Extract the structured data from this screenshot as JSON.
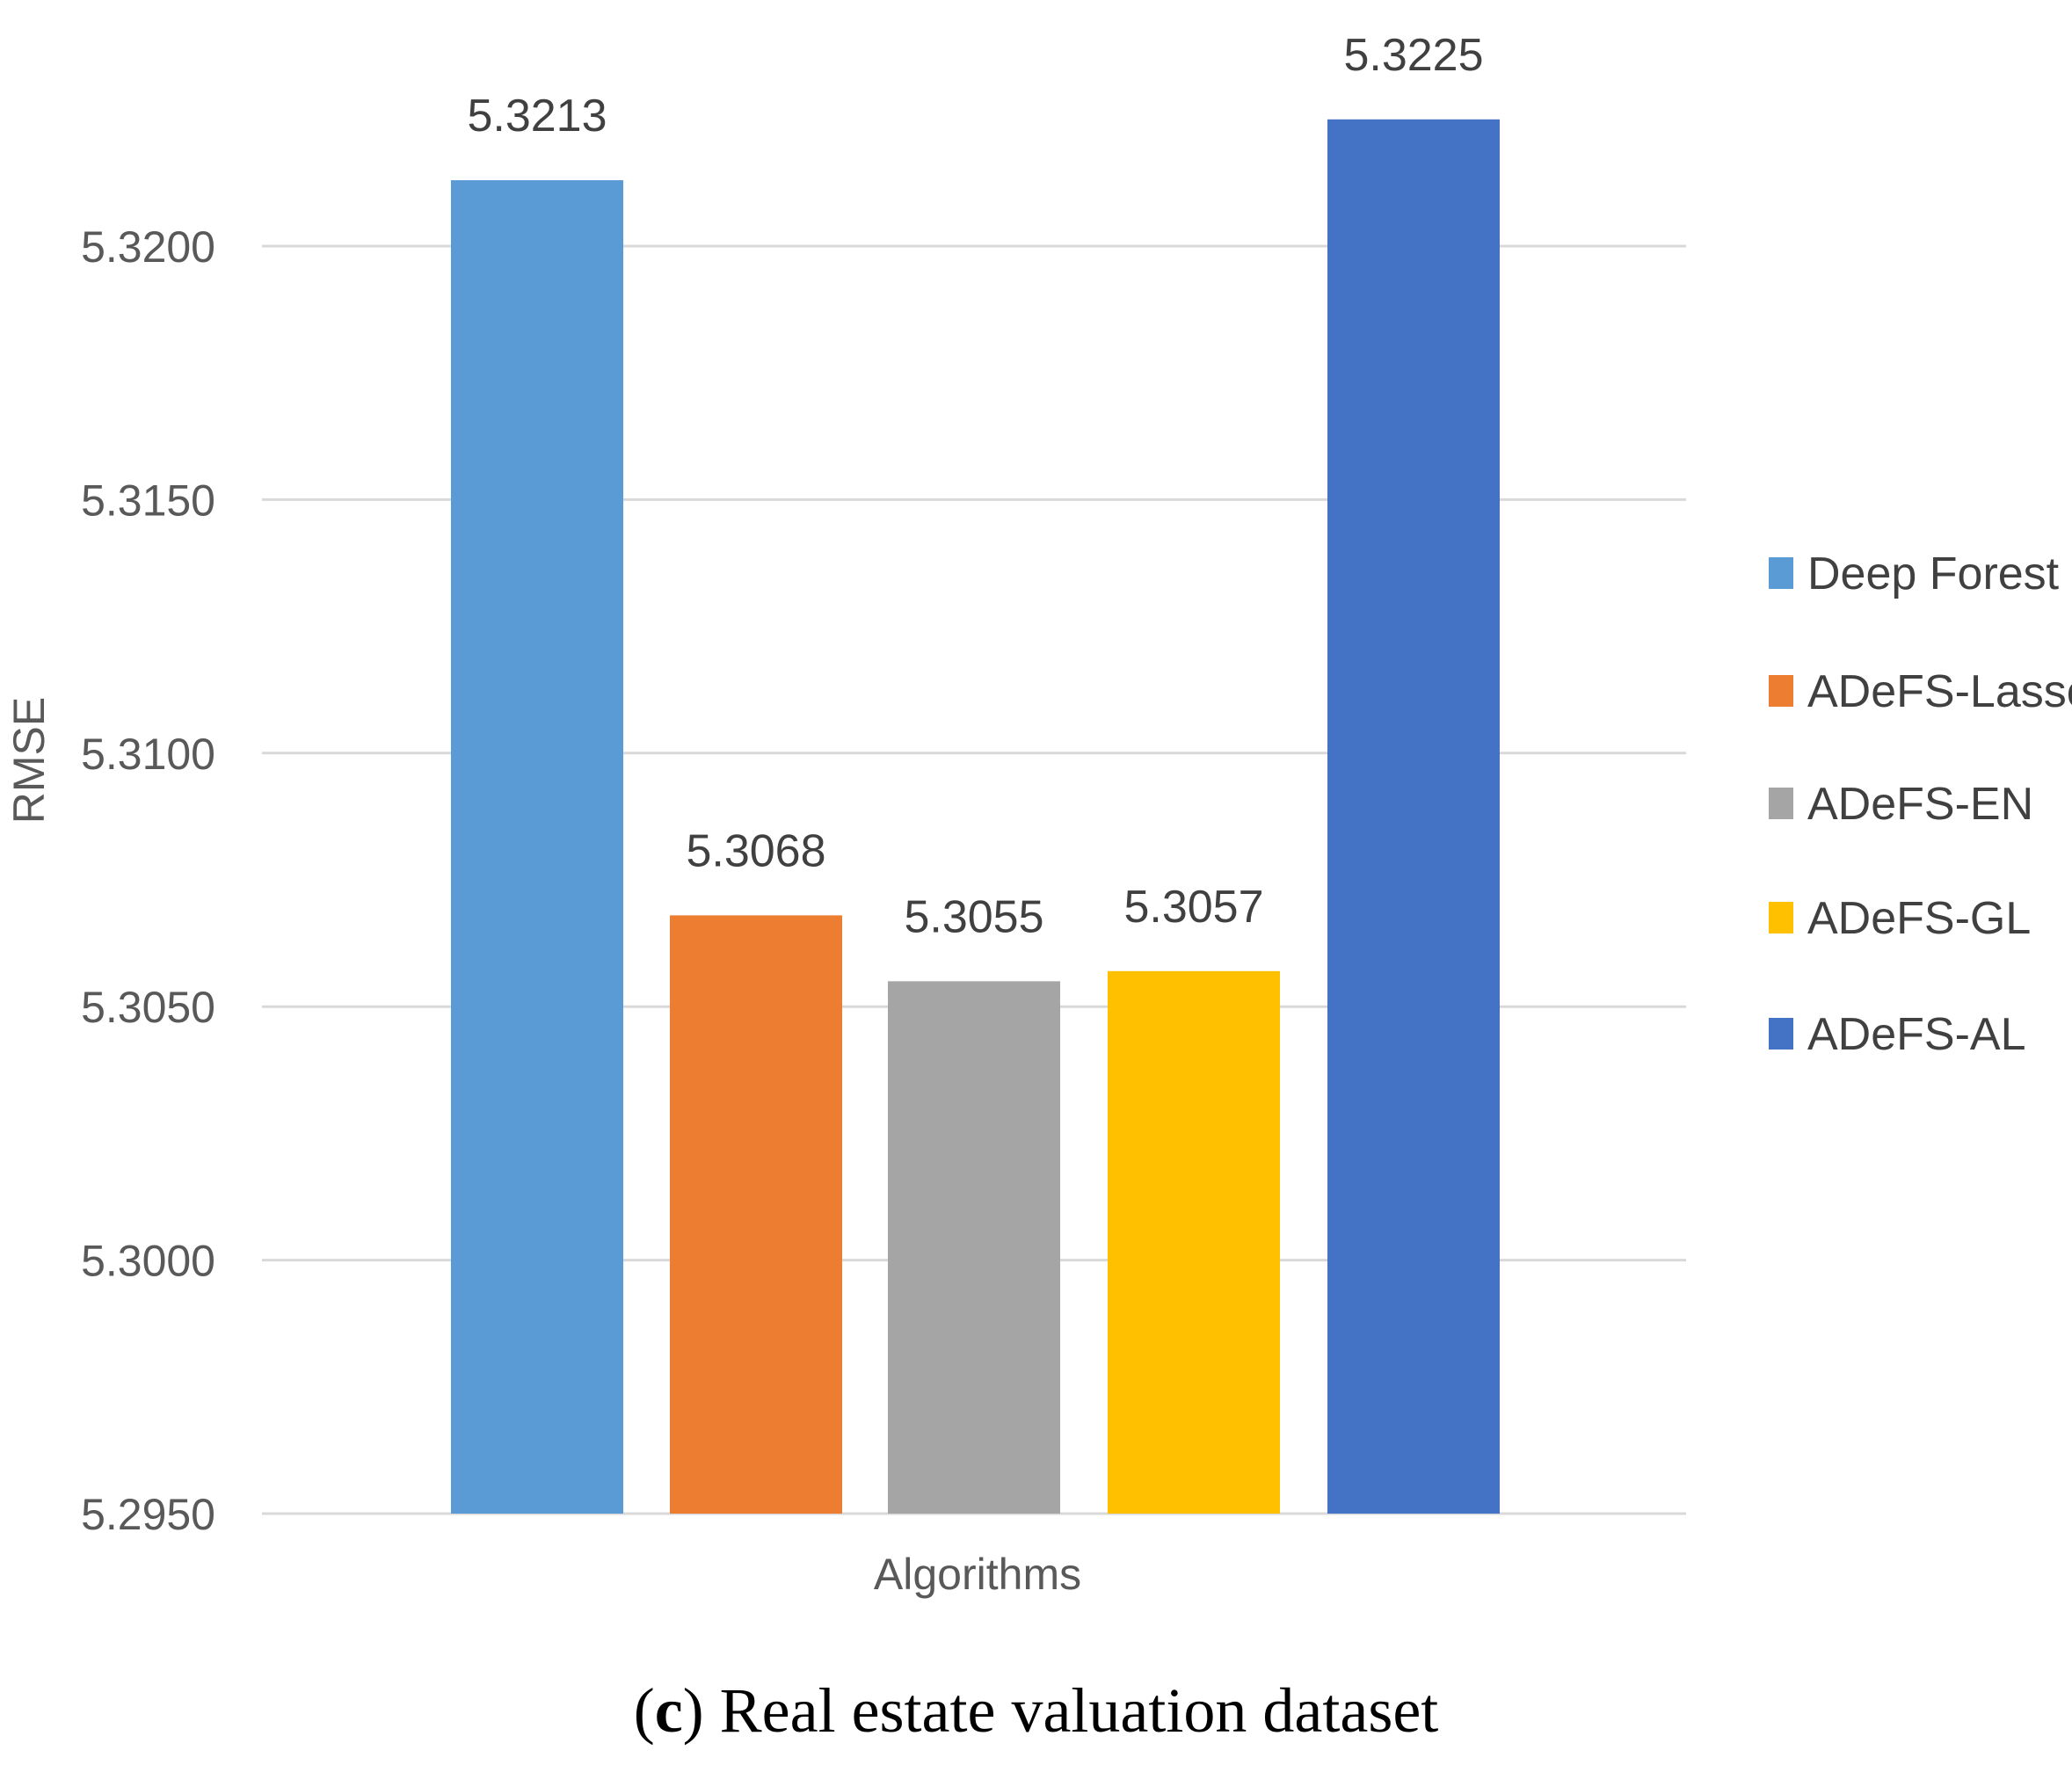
{
  "chart_data": {
    "type": "bar",
    "title": "",
    "xlabel": "Algorithms",
    "ylabel": "RMSE",
    "ylim": [
      5.295,
      5.3225
    ],
    "yticks": [
      "5.2950",
      "5.3000",
      "5.3050",
      "5.3100",
      "5.3150",
      "5.3200"
    ],
    "grid": true,
    "legend_position": "right",
    "series": [
      {
        "name": "Deep Forest",
        "value": 5.3213,
        "label": "5.3213",
        "color": "#5b9bd5"
      },
      {
        "name": "ADeFS-Lasso",
        "value": 5.3068,
        "label": "5.3068",
        "color": "#ed7d31"
      },
      {
        "name": "ADeFS-EN",
        "value": 5.3055,
        "label": "5.3055",
        "color": "#a5a5a5"
      },
      {
        "name": "ADeFS-GL",
        "value": 5.3057,
        "label": "5.3057",
        "color": "#ffc000"
      },
      {
        "name": "ADeFS-AL",
        "value": 5.3225,
        "label": "5.3225",
        "color": "#4472c4"
      }
    ]
  },
  "caption": {
    "open": "(",
    "letter": "c",
    "rest": ") Real estate valuation dataset"
  }
}
